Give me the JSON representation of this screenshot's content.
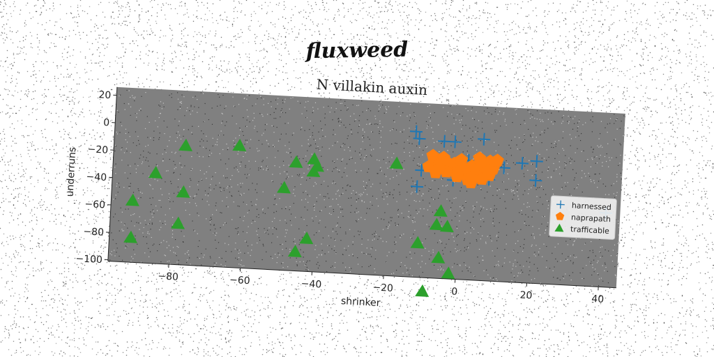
{
  "figure": {
    "title": "fluxweed"
  },
  "chart_data": {
    "type": "scatter",
    "title": "N villakin auxin",
    "xlabel": "shrinker",
    "ylabel": "underruns",
    "xlim": [
      -97,
      45
    ],
    "ylim": [
      -101,
      26
    ],
    "xticks": [
      -80,
      -60,
      -40,
      -20,
      0,
      20,
      40
    ],
    "yticks": [
      20,
      0,
      -20,
      -40,
      -60,
      -80,
      -100
    ],
    "xtick_labels": [
      "−80",
      "−60",
      "−40",
      "−20",
      "0",
      "20",
      "40"
    ],
    "ytick_labels": [
      "20",
      "0",
      "−20",
      "−40",
      "−60",
      "−80",
      "−100"
    ],
    "grid": false,
    "legend_position": "right",
    "plot_background": "#808080",
    "series": [
      {
        "name": "harnessed",
        "marker": "plus",
        "color": "#1f77b4",
        "points": [
          [
            -13,
            5
          ],
          [
            -12,
            0
          ],
          [
            -5,
            -1
          ],
          [
            -2,
            -1
          ],
          [
            6,
            2
          ],
          [
            2,
            -14
          ],
          [
            -7,
            -17
          ],
          [
            -11,
            -23
          ],
          [
            -12,
            -35
          ],
          [
            -2,
            -29
          ],
          [
            8,
            -27
          ],
          [
            12,
            -18
          ],
          [
            17,
            -14
          ],
          [
            21,
            -12
          ],
          [
            21,
            -26
          ],
          [
            41,
            -47
          ]
        ]
      },
      {
        "name": "naprapath",
        "marker": "pentagon",
        "color": "#ff7f0e",
        "points": [
          [
            -8,
            -12
          ],
          [
            -7,
            -15
          ],
          [
            -6,
            -18
          ],
          [
            -5,
            -13
          ],
          [
            -4,
            -16
          ],
          [
            -3,
            -20
          ],
          [
            -2,
            -17
          ],
          [
            -1,
            -22
          ],
          [
            0,
            -19
          ],
          [
            1,
            -24
          ],
          [
            2,
            -21
          ],
          [
            3,
            -18
          ],
          [
            4,
            -25
          ],
          [
            5,
            -20
          ],
          [
            6,
            -16
          ],
          [
            7,
            -22
          ],
          [
            8,
            -14
          ],
          [
            9,
            -19
          ],
          [
            10,
            -13
          ],
          [
            -9,
            -20
          ],
          [
            -7,
            -24
          ],
          [
            -4,
            -23
          ],
          [
            -1,
            -26
          ],
          [
            2,
            -28
          ],
          [
            6,
            -27
          ],
          [
            3,
            -30
          ],
          [
            -6,
            -21
          ],
          [
            0,
            -14
          ],
          [
            5,
            -12
          ],
          [
            8,
            -24
          ]
        ]
      },
      {
        "name": "trafficable",
        "marker": "triangle",
        "color": "#2ca02c",
        "points": [
          [
            -77,
            -14
          ],
          [
            -62,
            -12
          ],
          [
            -85,
            -35
          ],
          [
            -77,
            -48
          ],
          [
            -91,
            -56
          ],
          [
            -78,
            -71
          ],
          [
            -91,
            -83
          ],
          [
            -46,
            -22
          ],
          [
            -41,
            -19
          ],
          [
            -40,
            -24
          ],
          [
            -41,
            -28
          ],
          [
            -49,
            -41
          ],
          [
            -42,
            -77
          ],
          [
            -45,
            -87
          ],
          [
            -18,
            -19
          ],
          [
            -11,
            -76
          ],
          [
            -9,
            -111
          ],
          [
            -5,
            -52
          ],
          [
            -6,
            -62
          ],
          [
            -3,
            -63
          ],
          [
            -5,
            -86
          ],
          [
            -2,
            -97
          ]
        ]
      }
    ]
  }
}
